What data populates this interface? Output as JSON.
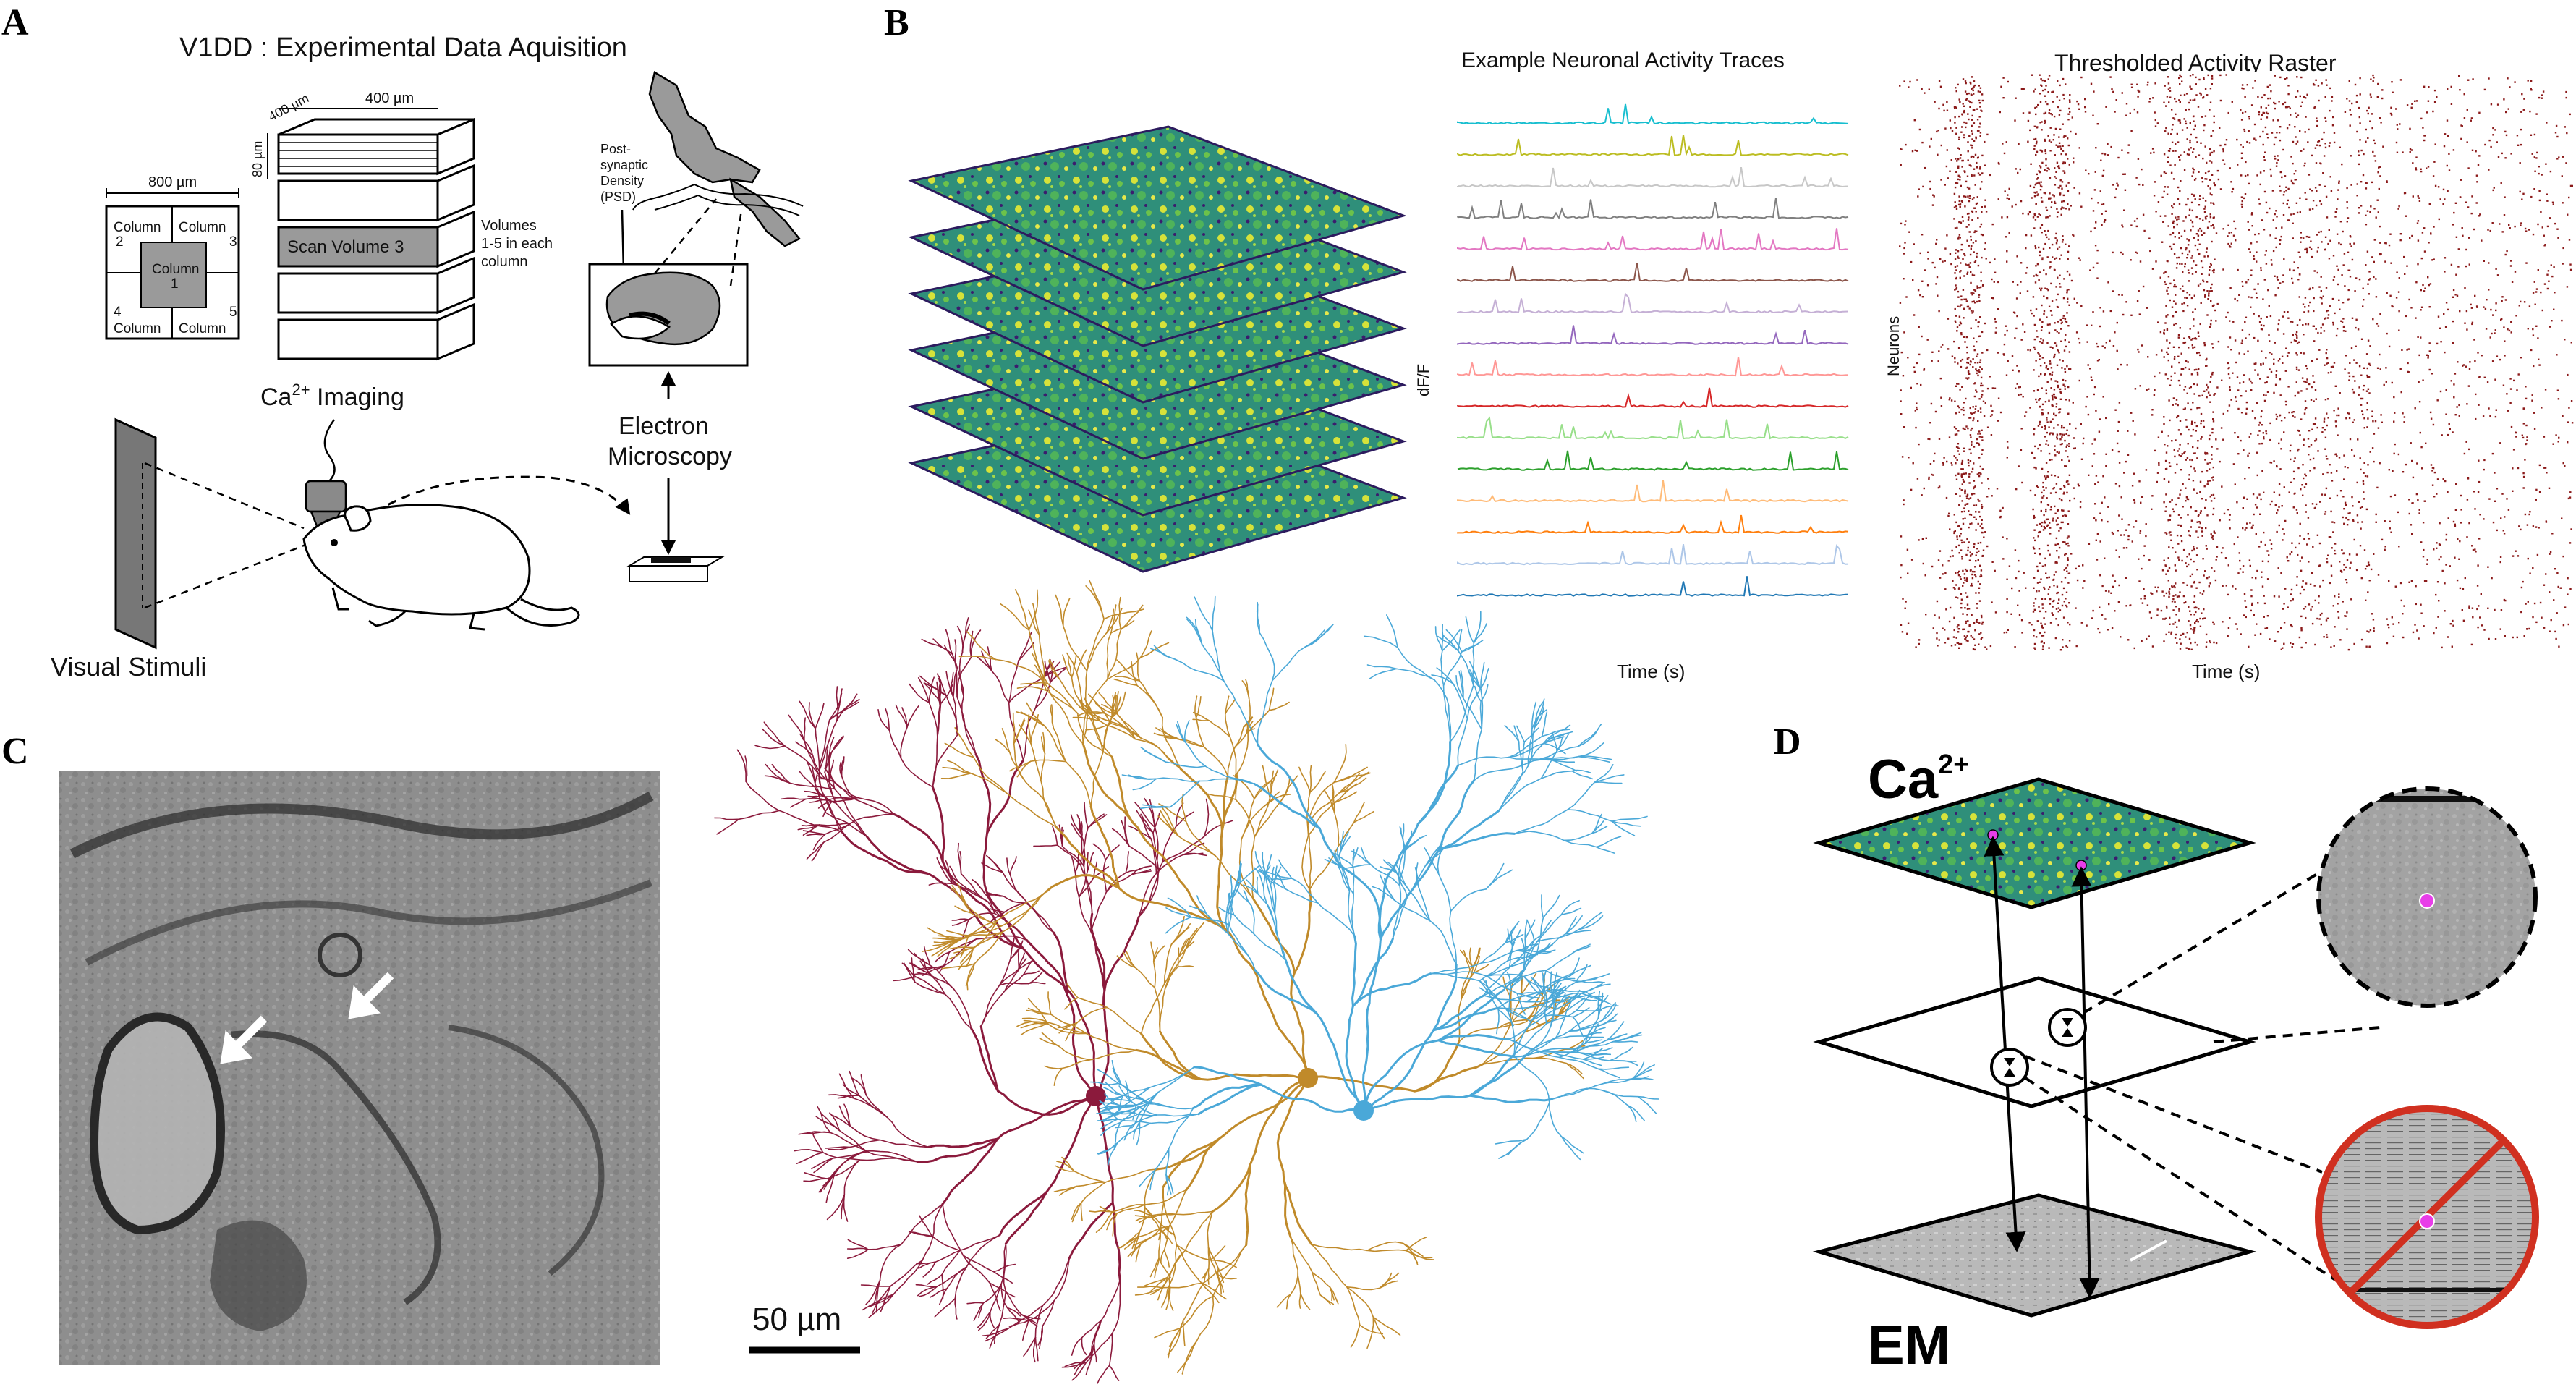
{
  "panels": {
    "a": {
      "label": "A",
      "title": "V1DD : Experimental Data Aquisition",
      "dim_800": "800 µm",
      "dim_400w": "400 µm",
      "dim_400d": "400 µm",
      "dim_80": "80 µm",
      "columns": [
        "Column",
        "2",
        "Column",
        "3",
        "Column",
        "1",
        "Column",
        "4",
        "Column",
        "5"
      ],
      "col_tl": "Column",
      "col_tl_n": "2",
      "col_tr": "Column",
      "col_tr_n": "3",
      "col_c": "Column",
      "col_c_n": "1",
      "col_bl_n": "4",
      "col_bl": "Column",
      "col_br_n": "5",
      "col_br": "Column",
      "scan_volume": "Scan Volume 3",
      "volumes_1": "Volumes",
      "volumes_2": "1-5 in each",
      "volumes_3": "column",
      "psd_1": "Post-",
      "psd_2": "synaptic",
      "psd_3": "Density",
      "psd_4": "(PSD)",
      "ca_prefix": "Ca",
      "ca_sup": "2+",
      "ca_suffix": " Imaging",
      "em_1": "Electron",
      "em_2": "Microscopy",
      "visual_stimuli": "Visual Stimuli"
    },
    "b": {
      "label": "B",
      "traces_title": "Example Neuronal Activity Traces",
      "raster_title": "Thresholded Activity Raster",
      "dff_label": "dF/F",
      "neurons_label": "Neurons",
      "time_label_1": "Time (s)",
      "time_label_2": "Time (s)"
    },
    "c": {
      "label": "C",
      "scale_bar": "50 µm"
    },
    "d": {
      "label": "D",
      "ca_prefix": "Ca",
      "ca_sup": "2+",
      "em_label": "EM"
    }
  },
  "colors": {
    "trace_colors": [
      "#17becf",
      "#bcbd22",
      "#c7c7c7",
      "#7f7f7f",
      "#e377c2",
      "#8c564b",
      "#c5b0d5",
      "#9467bd",
      "#ff9896",
      "#d62728",
      "#98df8a",
      "#2ca02c",
      "#ffbb78",
      "#ff7f0e",
      "#aec7e8",
      "#1f77b4"
    ],
    "neuron_colors": [
      "#8b1a3c",
      "#c08a2a",
      "#4aa8d8"
    ],
    "raster_color": "#8b1a1a",
    "calcium_map": [
      "#3b1c6e",
      "#2a7a8c",
      "#2fa37a",
      "#6cc24a",
      "#d6e23a"
    ],
    "marker": "#e83ee8",
    "no_match": "#d03020"
  }
}
